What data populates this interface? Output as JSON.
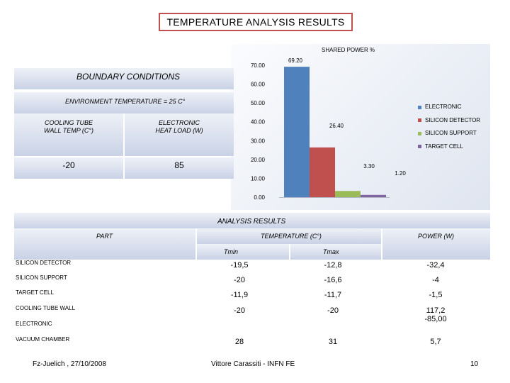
{
  "slide": {
    "title": "TEMPERATURE ANALYSIS  RESULTS",
    "footer_left": "Fz-Juelich , 27/10/2008",
    "footer_center": "Vittore Carassiti - INFN FE",
    "page_number": "10"
  },
  "boundary_conditions": {
    "title": "BOUNDARY CONDITIONS",
    "environment": "ENVIRONMENT TEMPERATURE = 25 C°",
    "col1_header_line1": "COOLING TUBE",
    "col1_header_line2": "WALL TEMP (C°)",
    "col2_header_line1": "ELECTRONIC",
    "col2_header_line2": "HEAT LOAD (W)",
    "col1_value": "-20",
    "col2_value": "85"
  },
  "analysis_results": {
    "title": "ANALYSIS RESULTS",
    "header_part": "PART",
    "header_temperature": "TEMPERATURE (C°)",
    "header_tmin": "Tmin",
    "header_tmax": "Tmax",
    "header_power": "POWER (W)",
    "rows": [
      {
        "part": "SILICON DETECTOR",
        "tmin": "-19,5",
        "tmax": "-12,8",
        "power": "-32,4"
      },
      {
        "part": "SILICON SUPPORT",
        "tmin": "-20",
        "tmax": "-16,6",
        "power": "-4"
      },
      {
        "part": "TARGET CELL",
        "tmin": "-11,9",
        "tmax": "-11,7",
        "power": "-1,5"
      },
      {
        "part": "COOLING TUBE WALL",
        "tmin": "-20",
        "tmax": "-20",
        "power": "117,2"
      },
      {
        "part": "ELECTRONIC",
        "tmin": "",
        "tmax": "",
        "power": "-85,00"
      },
      {
        "part": "VACUUM CHAMBER",
        "tmin": "28",
        "tmax": "31",
        "power": "5,7"
      }
    ]
  },
  "chart_data": {
    "type": "bar",
    "title": "SHARED POWER %",
    "categories": [
      "ELECTRONIC",
      "SILICON DETECTOR",
      "SILICON SUPPORT",
      "TARGET CELL"
    ],
    "values": [
      69.2,
      26.4,
      3.3,
      1.2
    ],
    "value_labels": [
      "69.20",
      "26.40",
      "3.30",
      "1.20"
    ],
    "colors": [
      "#4f81bd",
      "#c0504d",
      "#9bbb59",
      "#8064a2"
    ],
    "ylim": [
      0,
      70
    ],
    "yticks": [
      "0.00",
      "10.00",
      "20.00",
      "30.00",
      "40.00",
      "50.00",
      "60.00",
      "70.00"
    ],
    "legend_position": "right",
    "grid": false
  }
}
